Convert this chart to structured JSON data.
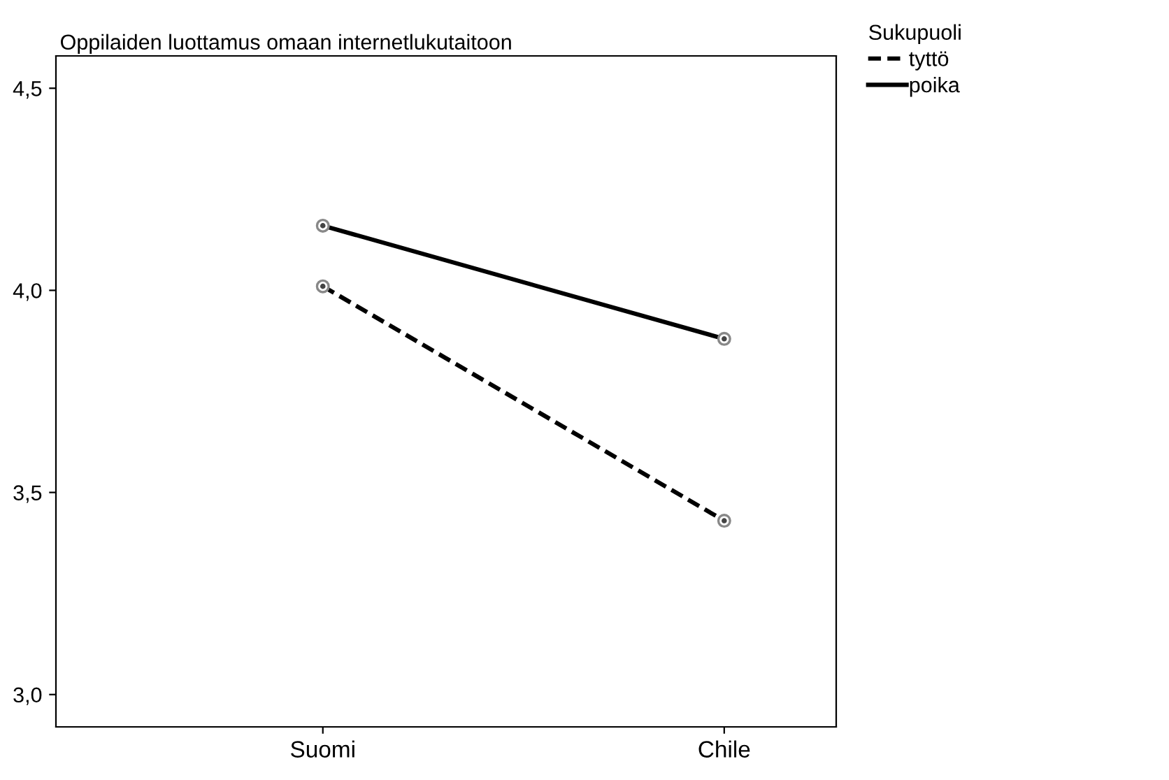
{
  "chart_data": {
    "type": "line",
    "title": "Oppilaiden luottamus omaan internetlukutaitoon",
    "categories": [
      "Suomi",
      "Chile"
    ],
    "legend_title": "Sukupuoli",
    "series": [
      {
        "name": "tyttö",
        "color": "#000000",
        "values": [
          4.01,
          3.43
        ],
        "line_style": "dashed"
      },
      {
        "name": "poika",
        "color": "#000000",
        "values": [
          4.16,
          3.88
        ],
        "line_style": "solid"
      }
    ],
    "ylim": [
      2.92,
      4.58
    ],
    "yticks": [
      {
        "value": 3.0,
        "label": "3,0"
      },
      {
        "value": 3.5,
        "label": "3,5"
      },
      {
        "value": 4.0,
        "label": "4,0"
      },
      {
        "value": 4.5,
        "label": "4,5"
      }
    ],
    "marker": "circle",
    "legend": "right",
    "grid": false
  }
}
